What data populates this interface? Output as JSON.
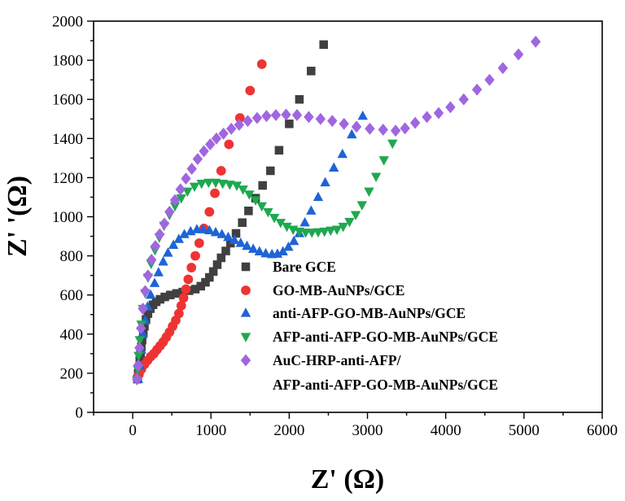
{
  "chart_data": {
    "type": "scatter",
    "title": "",
    "xlabel": "Z' (Ω)",
    "ylabel": "Z' '(Ω)",
    "xlim": [
      -500,
      6000
    ],
    "ylim": [
      0,
      2000
    ],
    "x_ticks": [
      0,
      1000,
      2000,
      3000,
      4000,
      5000,
      6000
    ],
    "y_ticks": [
      0,
      200,
      400,
      600,
      800,
      1000,
      1200,
      1400,
      1600,
      1800,
      2000
    ],
    "x_tick_labels": [
      "0",
      "1000",
      "2000",
      "3000",
      "4000",
      "5000",
      "6000"
    ],
    "y_tick_labels": [
      "0",
      "200",
      "400",
      "600",
      "800",
      "1000",
      "1200",
      "1400",
      "1600",
      "1800",
      "2000"
    ],
    "grid": false,
    "legend_position": "bottom-right inside plot",
    "legend_lines": [
      "AuC-HRP-anti-AFP/",
      "AFP-anti-AFP-GO-MB-AuNPs/GCE"
    ],
    "series": [
      {
        "name": "Bare GCE",
        "marker": "square",
        "color": "#404040",
        "points": [
          [
            60,
            170
          ],
          [
            70,
            200
          ],
          [
            80,
            230
          ],
          [
            90,
            265
          ],
          [
            100,
            300
          ],
          [
            110,
            335
          ],
          [
            120,
            370
          ],
          [
            135,
            405
          ],
          [
            150,
            440
          ],
          [
            170,
            475
          ],
          [
            195,
            505
          ],
          [
            225,
            530
          ],
          [
            260,
            550
          ],
          [
            300,
            565
          ],
          [
            350,
            578
          ],
          [
            410,
            590
          ],
          [
            480,
            600
          ],
          [
            560,
            608
          ],
          [
            640,
            615
          ],
          [
            720,
            622
          ],
          [
            800,
            630
          ],
          [
            870,
            645
          ],
          [
            930,
            665
          ],
          [
            980,
            690
          ],
          [
            1030,
            720
          ],
          [
            1080,
            755
          ],
          [
            1130,
            790
          ],
          [
            1190,
            825
          ],
          [
            1250,
            865
          ],
          [
            1320,
            915
          ],
          [
            1400,
            970
          ],
          [
            1480,
            1030
          ],
          [
            1570,
            1095
          ],
          [
            1660,
            1160
          ],
          [
            1760,
            1235
          ],
          [
            1870,
            1340
          ],
          [
            2000,
            1475
          ],
          [
            2130,
            1600
          ],
          [
            2280,
            1745
          ],
          [
            2440,
            1880
          ]
        ]
      },
      {
        "name": "GO-MB-AuNPs/GCE",
        "marker": "circle",
        "color": "#ee3333",
        "points": [
          [
            60,
            170
          ],
          [
            80,
            195
          ],
          [
            110,
            220
          ],
          [
            150,
            245
          ],
          [
            190,
            265
          ],
          [
            230,
            285
          ],
          [
            270,
            300
          ],
          [
            310,
            320
          ],
          [
            350,
            340
          ],
          [
            390,
            360
          ],
          [
            430,
            385
          ],
          [
            470,
            410
          ],
          [
            510,
            440
          ],
          [
            550,
            470
          ],
          [
            590,
            505
          ],
          [
            620,
            545
          ],
          [
            650,
            585
          ],
          [
            680,
            630
          ],
          [
            710,
            680
          ],
          [
            750,
            740
          ],
          [
            800,
            800
          ],
          [
            850,
            865
          ],
          [
            910,
            940
          ],
          [
            980,
            1025
          ],
          [
            1050,
            1120
          ],
          [
            1130,
            1235
          ],
          [
            1230,
            1370
          ],
          [
            1370,
            1505
          ],
          [
            1500,
            1645
          ],
          [
            1650,
            1780
          ]
        ]
      },
      {
        "name": "anti-AFP-GO-MB-AuNPs/GCE",
        "marker": "triangle-up",
        "color": "#1e64d6",
        "points": [
          [
            70,
            170
          ],
          [
            90,
            240
          ],
          [
            110,
            320
          ],
          [
            130,
            400
          ],
          [
            160,
            470
          ],
          [
            190,
            540
          ],
          [
            230,
            600
          ],
          [
            280,
            660
          ],
          [
            330,
            715
          ],
          [
            390,
            770
          ],
          [
            450,
            815
          ],
          [
            520,
            855
          ],
          [
            590,
            885
          ],
          [
            660,
            910
          ],
          [
            740,
            925
          ],
          [
            820,
            935
          ],
          [
            900,
            935
          ],
          [
            980,
            930
          ],
          [
            1060,
            920
          ],
          [
            1140,
            910
          ],
          [
            1220,
            895
          ],
          [
            1300,
            880
          ],
          [
            1380,
            865
          ],
          [
            1460,
            850
          ],
          [
            1540,
            835
          ],
          [
            1620,
            822
          ],
          [
            1700,
            812
          ],
          [
            1780,
            808
          ],
          [
            1850,
            810
          ],
          [
            1920,
            822
          ],
          [
            1990,
            845
          ],
          [
            2060,
            875
          ],
          [
            2130,
            915
          ],
          [
            2200,
            970
          ],
          [
            2280,
            1030
          ],
          [
            2370,
            1100
          ],
          [
            2460,
            1175
          ],
          [
            2570,
            1250
          ],
          [
            2680,
            1320
          ],
          [
            2800,
            1420
          ],
          [
            2940,
            1515
          ]
        ]
      },
      {
        "name": "AFP-anti-AFP-GO-MB-AuNPs/GCE",
        "marker": "triangle-down",
        "color": "#1fa84f",
        "points": [
          [
            55,
            165
          ],
          [
            65,
            220
          ],
          [
            75,
            290
          ],
          [
            90,
            370
          ],
          [
            110,
            450
          ],
          [
            130,
            530
          ],
          [
            160,
            610
          ],
          [
            195,
            690
          ],
          [
            235,
            760
          ],
          [
            285,
            830
          ],
          [
            340,
            895
          ],
          [
            400,
            955
          ],
          [
            470,
            1010
          ],
          [
            540,
            1055
          ],
          [
            620,
            1095
          ],
          [
            700,
            1130
          ],
          [
            790,
            1155
          ],
          [
            880,
            1170
          ],
          [
            970,
            1175
          ],
          [
            1060,
            1175
          ],
          [
            1150,
            1170
          ],
          [
            1240,
            1165
          ],
          [
            1330,
            1160
          ],
          [
            1410,
            1140
          ],
          [
            1490,
            1115
          ],
          [
            1570,
            1085
          ],
          [
            1650,
            1055
          ],
          [
            1730,
            1025
          ],
          [
            1810,
            995
          ],
          [
            1890,
            970
          ],
          [
            1970,
            950
          ],
          [
            2050,
            935
          ],
          [
            2130,
            925
          ],
          [
            2210,
            920
          ],
          [
            2290,
            920
          ],
          [
            2370,
            922
          ],
          [
            2450,
            925
          ],
          [
            2530,
            930
          ],
          [
            2610,
            935
          ],
          [
            2690,
            950
          ],
          [
            2770,
            975
          ],
          [
            2850,
            1010
          ],
          [
            2930,
            1060
          ],
          [
            3020,
            1130
          ],
          [
            3110,
            1205
          ],
          [
            3210,
            1290
          ],
          [
            3320,
            1375
          ]
        ]
      },
      {
        "name": "AuC-HRP-anti-AFP/\nAFP-anti-AFP-GO-MB-AuNPs/GCE",
        "marker": "diamond",
        "color": "#a066e0",
        "points": [
          [
            55,
            170
          ],
          [
            70,
            240
          ],
          [
            85,
            330
          ],
          [
            105,
            430
          ],
          [
            130,
            530
          ],
          [
            160,
            620
          ],
          [
            195,
            700
          ],
          [
            240,
            780
          ],
          [
            290,
            850
          ],
          [
            345,
            910
          ],
          [
            405,
            965
          ],
          [
            470,
            1025
          ],
          [
            540,
            1085
          ],
          [
            610,
            1140
          ],
          [
            680,
            1195
          ],
          [
            755,
            1245
          ],
          [
            830,
            1295
          ],
          [
            910,
            1335
          ],
          [
            990,
            1370
          ],
          [
            1070,
            1400
          ],
          [
            1160,
            1425
          ],
          [
            1260,
            1450
          ],
          [
            1360,
            1470
          ],
          [
            1470,
            1490
          ],
          [
            1590,
            1505
          ],
          [
            1710,
            1515
          ],
          [
            1830,
            1520
          ],
          [
            1960,
            1522
          ],
          [
            2100,
            1520
          ],
          [
            2250,
            1510
          ],
          [
            2400,
            1500
          ],
          [
            2550,
            1490
          ],
          [
            2700,
            1475
          ],
          [
            2860,
            1460
          ],
          [
            3030,
            1450
          ],
          [
            3200,
            1445
          ],
          [
            3360,
            1440
          ],
          [
            3480,
            1452
          ],
          [
            3610,
            1480
          ],
          [
            3760,
            1510
          ],
          [
            3910,
            1530
          ],
          [
            4060,
            1560
          ],
          [
            4230,
            1600
          ],
          [
            4400,
            1650
          ],
          [
            4560,
            1700
          ],
          [
            4730,
            1760
          ],
          [
            4930,
            1830
          ],
          [
            5150,
            1895
          ]
        ]
      }
    ]
  }
}
